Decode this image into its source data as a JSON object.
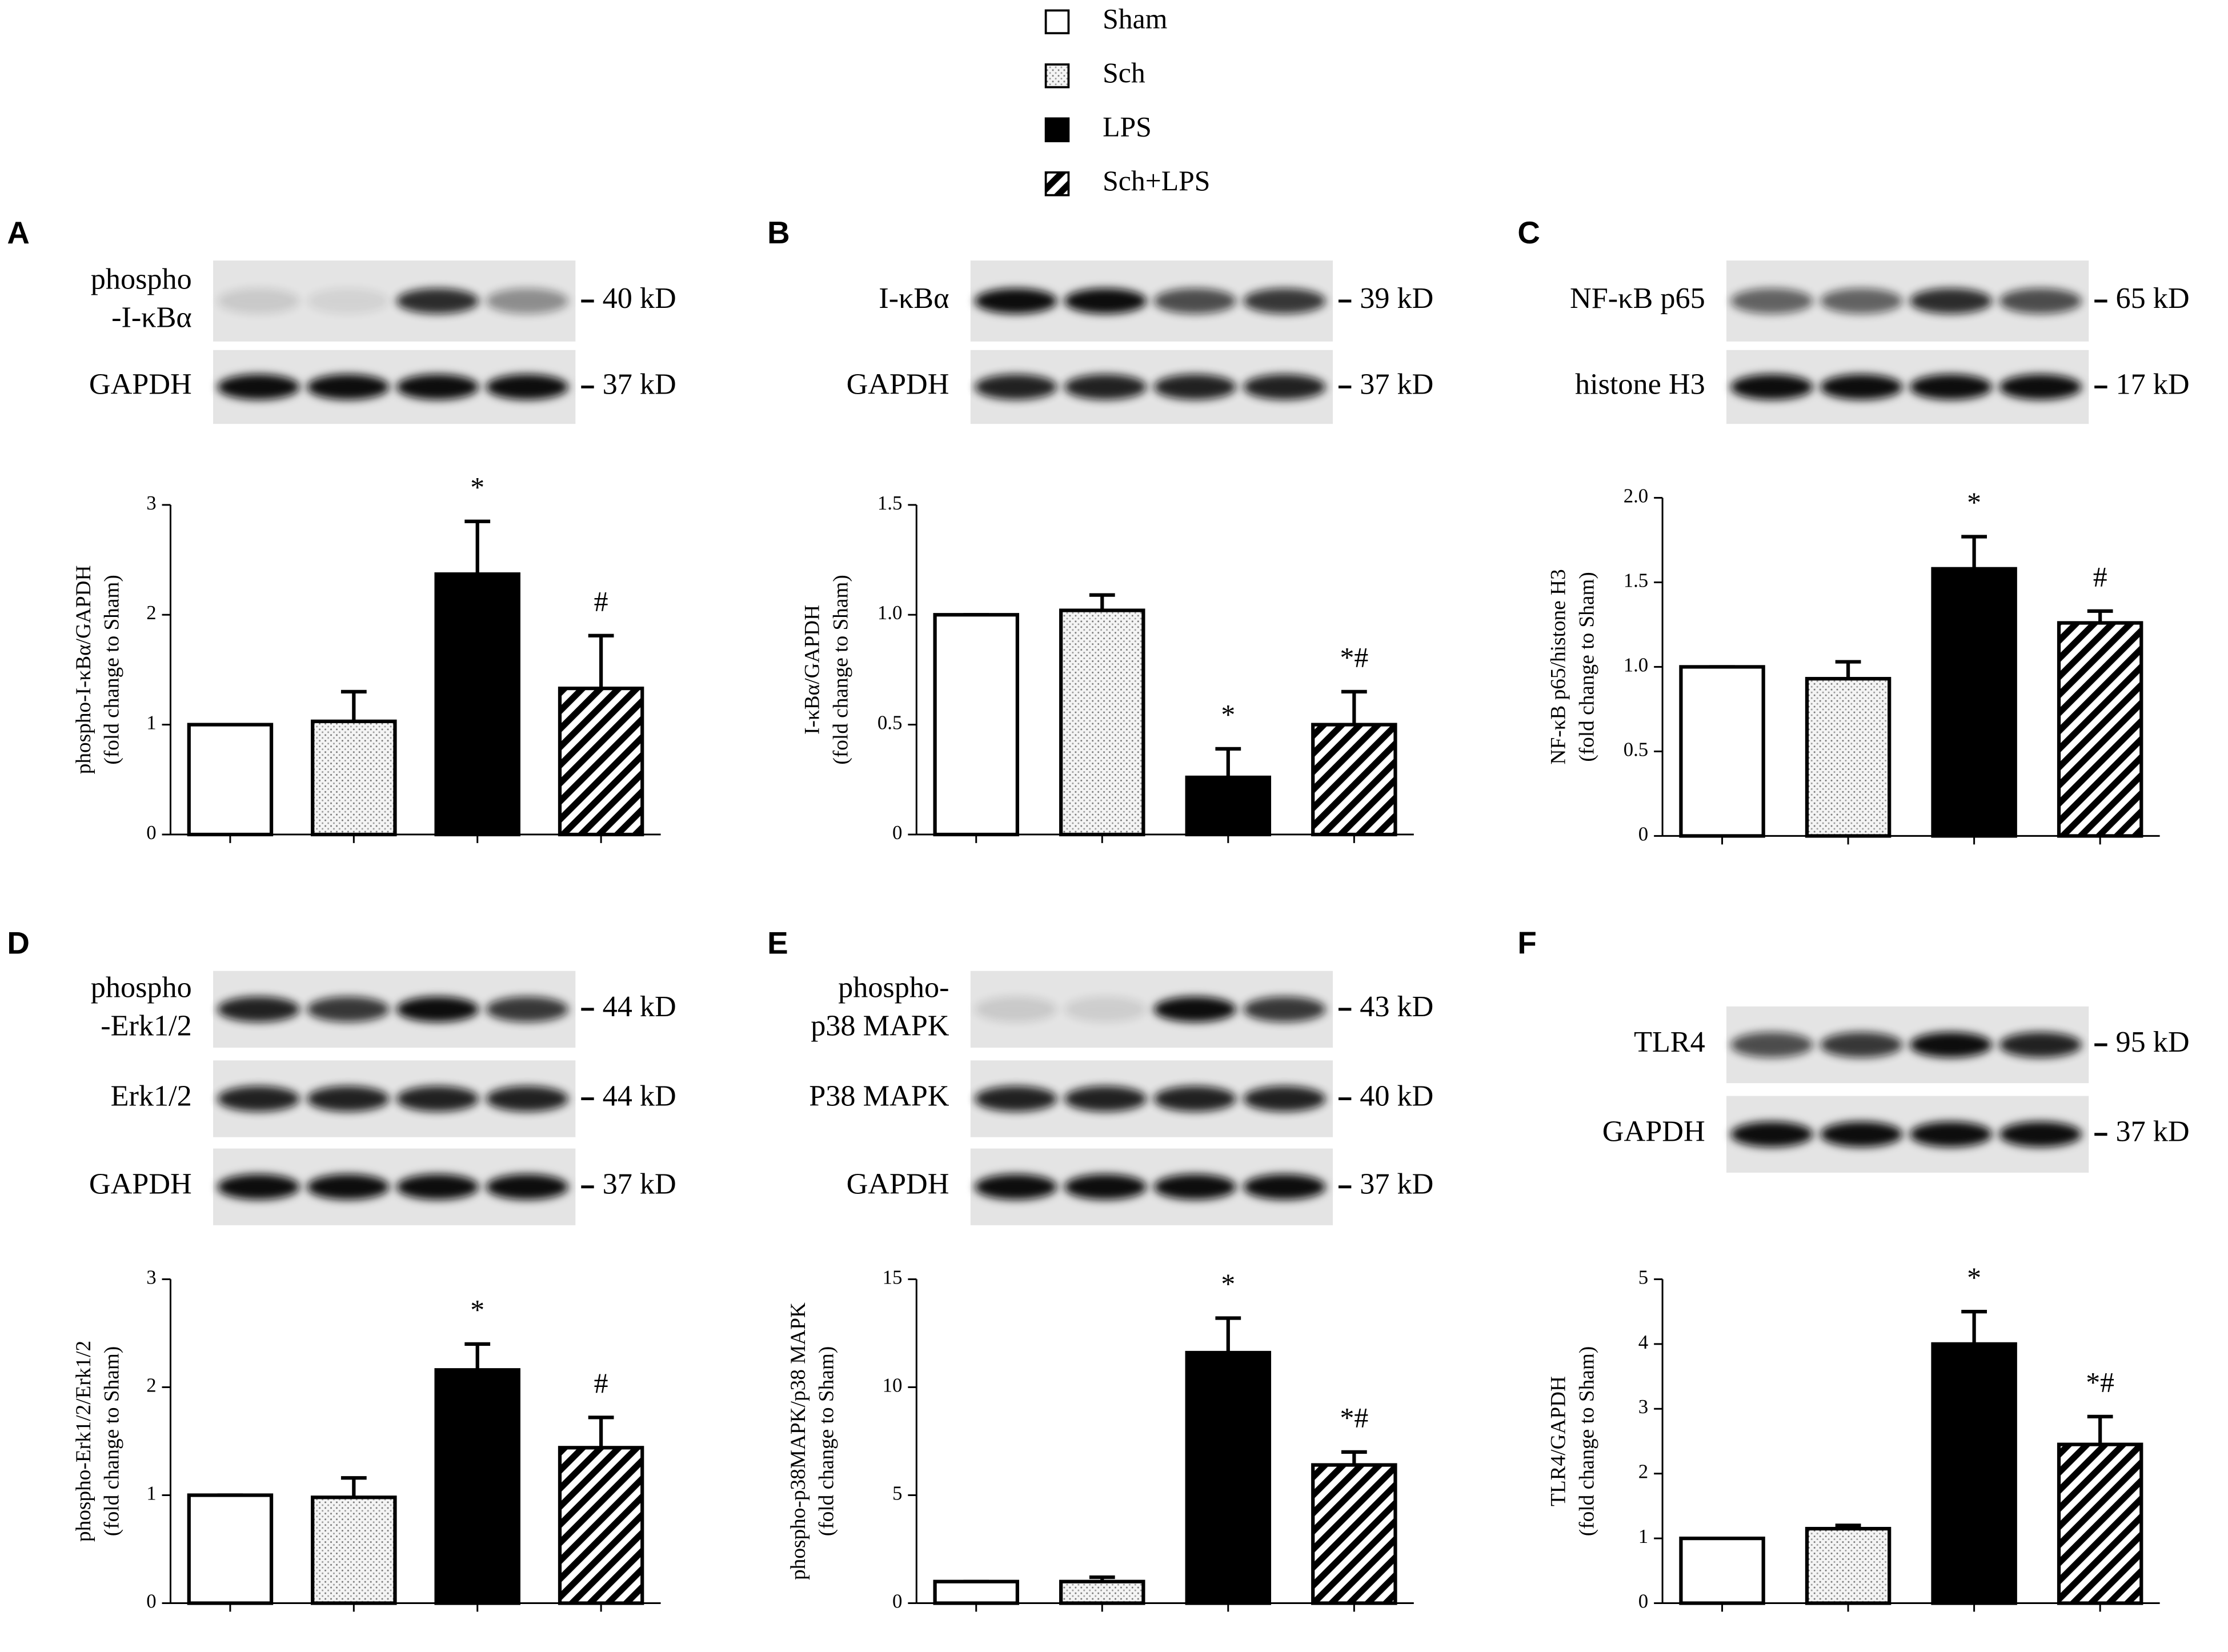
{
  "legend": [
    {
      "name": "Sham",
      "fill": "open"
    },
    {
      "name": "Sch",
      "fill": "dotted"
    },
    {
      "name": "LPS",
      "fill": "solid"
    },
    {
      "name": "Sch+LPS",
      "fill": "hatched"
    }
  ],
  "chart_data": [
    {
      "type": "bar",
      "panel": "A",
      "blots": [
        {
          "label": [
            "phospho",
            "-I-κBα"
          ],
          "size": "40 kD"
        },
        {
          "label": [
            "GAPDH"
          ],
          "size": "37 kD"
        }
      ],
      "ylabel": [
        "phospho-I-κBα/GAPDH",
        "(fold change to Sham)"
      ],
      "ylim": [
        0,
        3
      ],
      "yticks": [
        0,
        1,
        2,
        3
      ],
      "values": [
        1,
        1.03,
        2.37,
        1.33
      ],
      "errors": [
        0,
        0.27,
        0.48,
        0.48
      ],
      "annotations": [
        {
          "index": 2,
          "text": "*"
        },
        {
          "index": 3,
          "text": "#"
        }
      ]
    },
    {
      "type": "bar",
      "panel": "B",
      "blots": [
        {
          "label": [
            "I-κBα"
          ],
          "size": "39 kD"
        },
        {
          "label": [
            "GAPDH"
          ],
          "size": "37 kD"
        }
      ],
      "ylabel": [
        "I-κBα/GAPDH",
        "(fold change to Sham)"
      ],
      "ylim": [
        0,
        1.5
      ],
      "yticks": [
        0,
        0.5,
        {
          "value": 1,
          "label": "1.0"
        },
        1.5
      ],
      "values": [
        1,
        1.02,
        0.26,
        0.5
      ],
      "errors": [
        0,
        0.07,
        0.13,
        0.15
      ],
      "annotations": [
        {
          "index": 2,
          "text": "*"
        },
        {
          "index": 3,
          "text": "*#"
        }
      ]
    },
    {
      "type": "bar",
      "panel": "C",
      "blots": [
        {
          "label": [
            "NF-κB p65"
          ],
          "size": "65 kD"
        },
        {
          "label": [
            "histone H3"
          ],
          "size": "17 kD"
        }
      ],
      "ylabel": [
        "NF-κB  p65/histone H3",
        "(fold change to Sham)"
      ],
      "ylim": [
        0,
        2
      ],
      "yticks": [
        0,
        0.5,
        {
          "value": 1,
          "label": "1.0"
        },
        1.5,
        {
          "value": 2,
          "label": "2.0"
        }
      ],
      "values": [
        1,
        0.93,
        1.58,
        1.26
      ],
      "errors": [
        0,
        0.1,
        0.19,
        0.07
      ],
      "annotations": [
        {
          "index": 2,
          "text": "*"
        },
        {
          "index": 3,
          "text": "#"
        }
      ]
    },
    {
      "type": "bar",
      "panel": "D",
      "blots": [
        {
          "label": [
            "phospho",
            "-Erk1/2"
          ],
          "size": "44 kD"
        },
        {
          "label": [
            "Erk1/2"
          ],
          "size": "44 kD"
        },
        {
          "label": [
            "GAPDH"
          ],
          "size": "37 kD"
        }
      ],
      "ylabel": [
        "phospho-Erk1/2/Erk1/2",
        "(fold change to Sham)"
      ],
      "ylim": [
        0,
        3
      ],
      "yticks": [
        0,
        1,
        2,
        3
      ],
      "values": [
        1,
        0.98,
        2.16,
        1.44
      ],
      "errors": [
        0,
        0.18,
        0.24,
        0.28
      ],
      "annotations": [
        {
          "index": 2,
          "text": "*"
        },
        {
          "index": 3,
          "text": "#"
        }
      ]
    },
    {
      "type": "bar",
      "panel": "E",
      "blots": [
        {
          "label": [
            "phospho-",
            "p38 MAPK"
          ],
          "size": "43 kD"
        },
        {
          "label": [
            "P38 MAPK"
          ],
          "size": "40 kD"
        },
        {
          "label": [
            "GAPDH"
          ],
          "size": "37 kD"
        }
      ],
      "ylabel": [
        "phospho-p38MAPK/p38 MAPK",
        "(fold change to Sham)"
      ],
      "ylim": [
        0,
        15
      ],
      "yticks": [
        0,
        5,
        10,
        15
      ],
      "values": [
        1,
        1,
        11.6,
        6.4
      ],
      "errors": [
        0,
        0.2,
        1.6,
        0.6
      ],
      "annotations": [
        {
          "index": 2,
          "text": "*"
        },
        {
          "index": 3,
          "text": "*#"
        }
      ]
    },
    {
      "type": "bar",
      "panel": "F",
      "blots": [
        {
          "label": [
            "TLR4"
          ],
          "size": "95 kD"
        },
        {
          "label": [
            "GAPDH"
          ],
          "size": "37 kD"
        }
      ],
      "ylabel": [
        "TLR4/GAPDH",
        "(fold change to Sham)"
      ],
      "ylim": [
        0,
        5
      ],
      "yticks": [
        0,
        1,
        2,
        3,
        4,
        5
      ],
      "values": [
        1,
        1.15,
        4.0,
        2.45
      ],
      "errors": [
        0,
        0.05,
        0.5,
        0.43
      ],
      "annotations": [
        {
          "index": 2,
          "text": "*"
        },
        {
          "index": 3,
          "text": "*#"
        }
      ]
    }
  ]
}
